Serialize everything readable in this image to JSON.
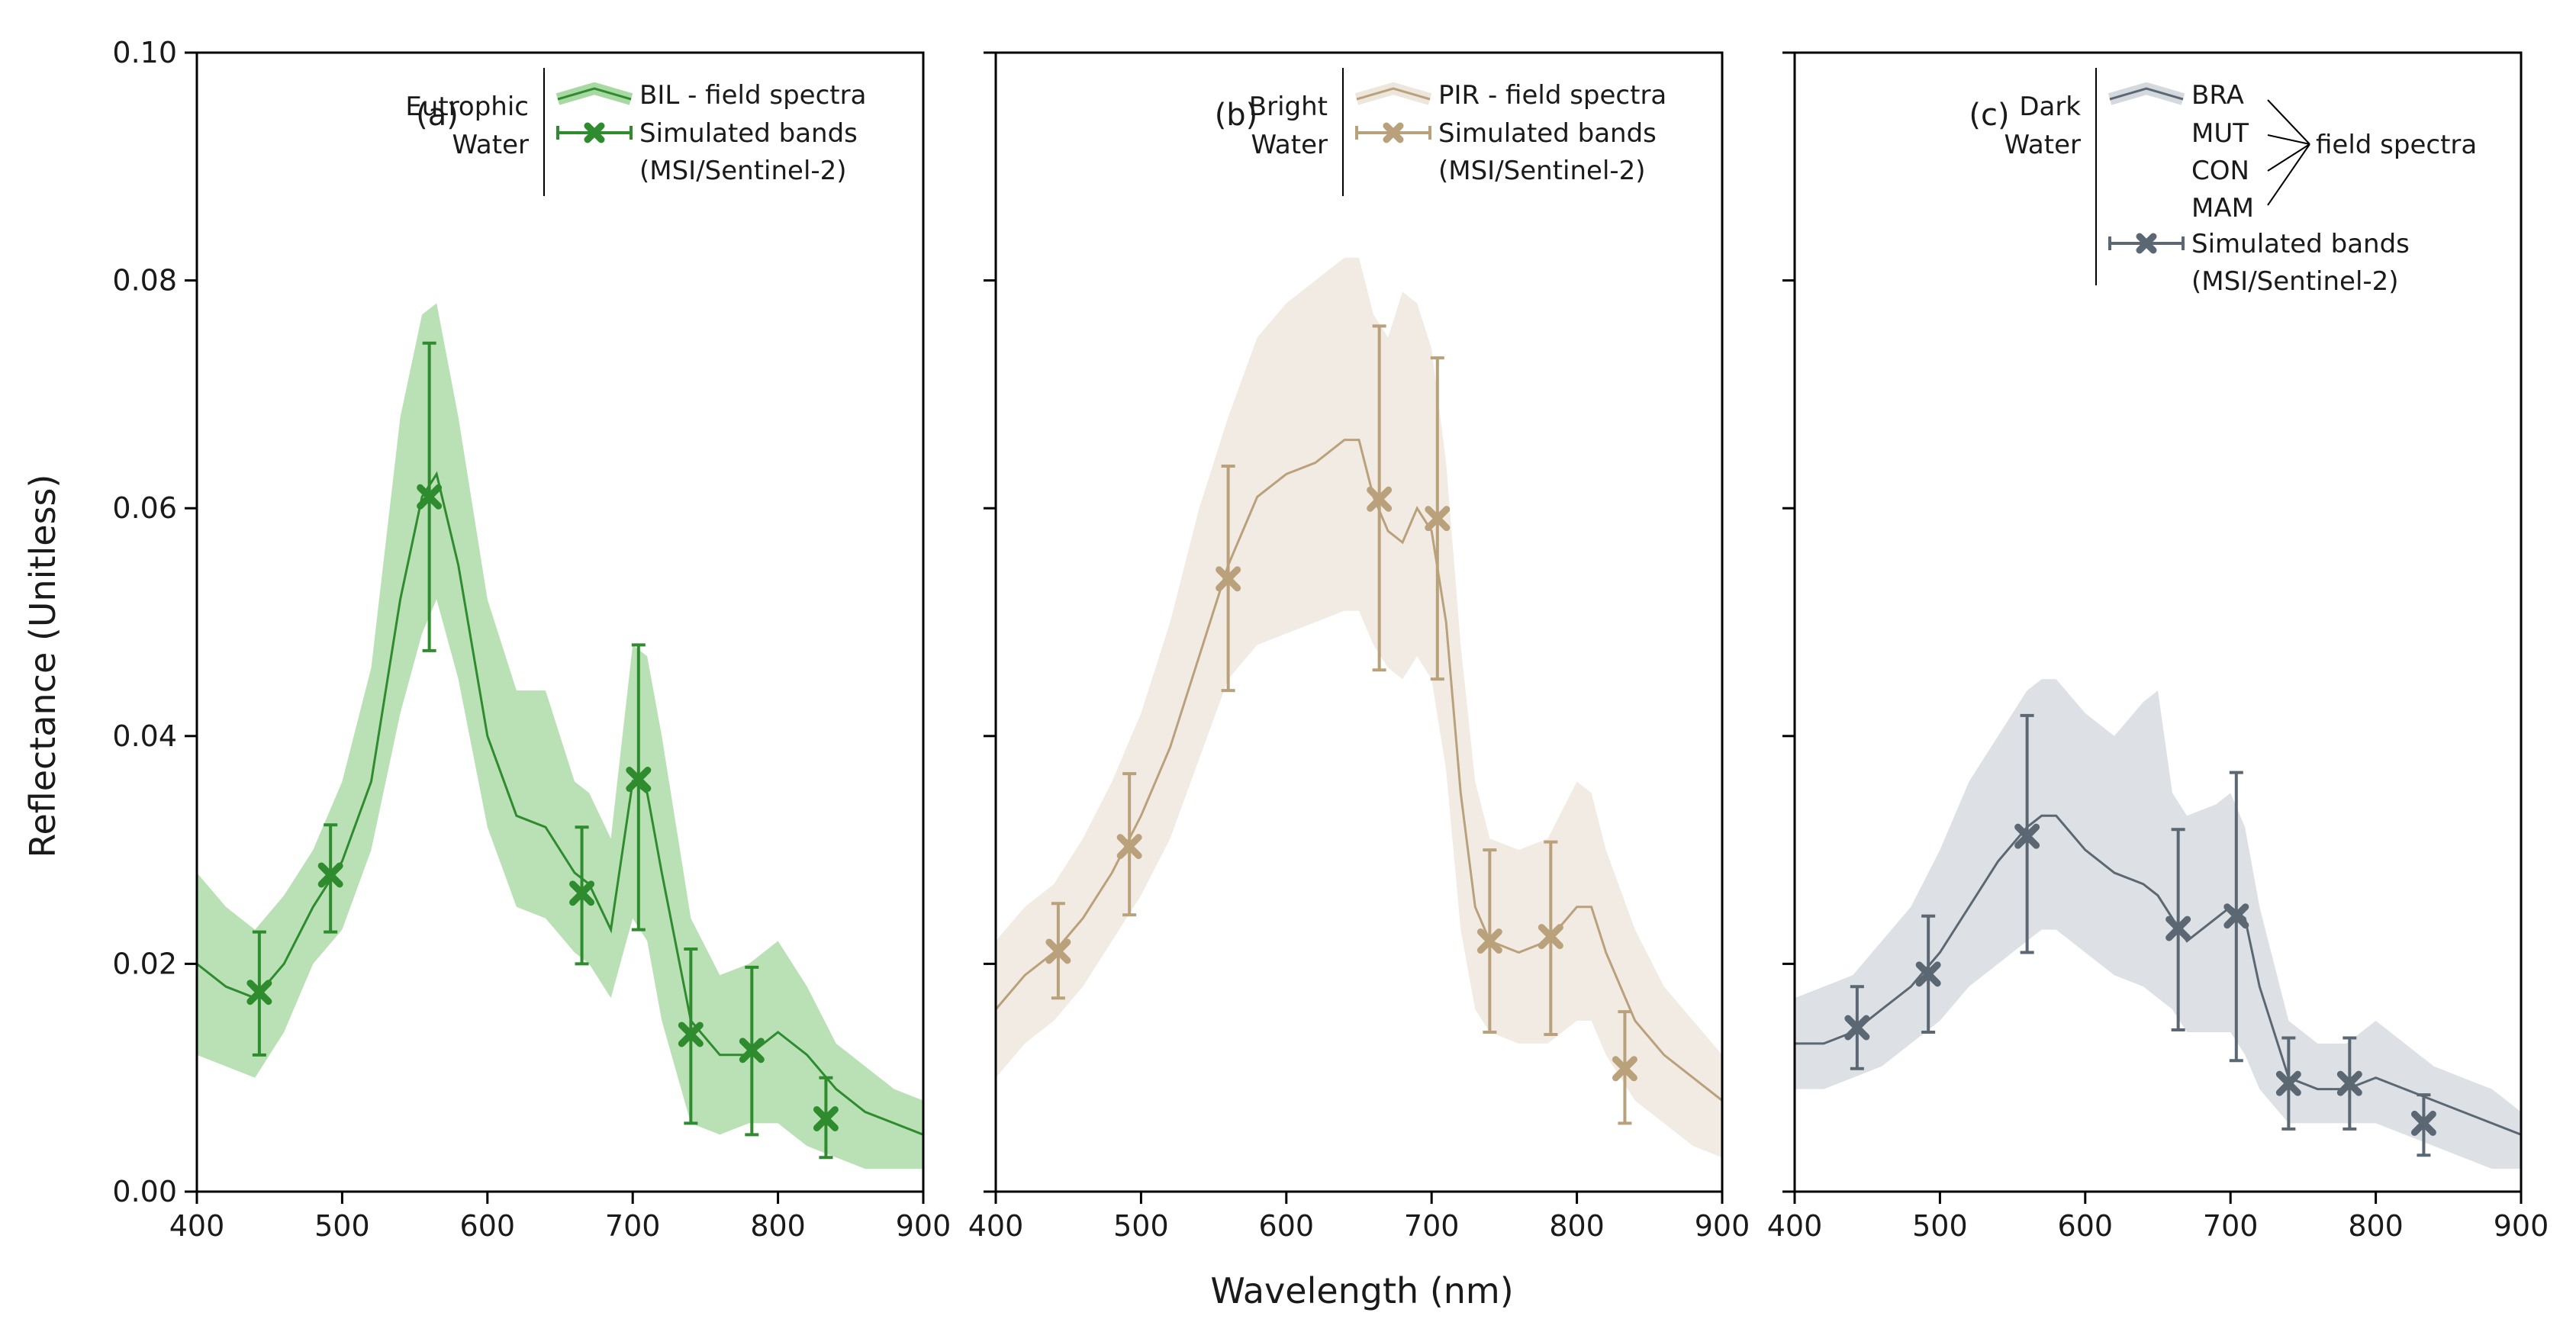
{
  "chart_data": {
    "type": "line",
    "ylabel": "Reflectance (Unitless)",
    "xlabel": "Wavelength (nm)",
    "xlim": [
      400,
      900
    ],
    "ylim": [
      0,
      0.1
    ],
    "x_ticks": [
      "400",
      "500",
      "600",
      "700",
      "800",
      "900"
    ],
    "y_ticks": [
      "0.00",
      "0.02",
      "0.04",
      "0.06",
      "0.08",
      "0.10"
    ],
    "grid": false,
    "band_wavelengths": [
      443,
      490,
      560,
      665,
      705,
      740,
      783,
      842
    ],
    "panels": [
      {
        "tag": "(a)",
        "water_line1": "Eutrophic",
        "water_line2": "Water",
        "legend": {
          "spectra_label": "BIL - field spectra",
          "bands_line1": "Simulated bands",
          "bands_line2": "(MSI/Sentinel-2)"
        },
        "color": "#2e8b2e",
        "fill_color": "#a9d9a3",
        "spectrum": {
          "x": [
            400,
            420,
            440,
            460,
            480,
            500,
            520,
            540,
            555,
            565,
            580,
            600,
            620,
            640,
            660,
            670,
            685,
            700,
            710,
            720,
            740,
            760,
            780,
            800,
            820,
            840,
            860,
            880,
            900
          ],
          "mean": [
            0.02,
            0.018,
            0.017,
            0.02,
            0.025,
            0.029,
            0.036,
            0.052,
            0.061,
            0.063,
            0.055,
            0.04,
            0.033,
            0.032,
            0.028,
            0.027,
            0.023,
            0.036,
            0.035,
            0.028,
            0.015,
            0.012,
            0.012,
            0.014,
            0.012,
            0.009,
            0.007,
            0.006,
            0.005
          ],
          "lower": [
            0.012,
            0.011,
            0.01,
            0.014,
            0.02,
            0.023,
            0.03,
            0.042,
            0.049,
            0.052,
            0.045,
            0.032,
            0.025,
            0.024,
            0.021,
            0.02,
            0.017,
            0.024,
            0.022,
            0.015,
            0.006,
            0.005,
            0.006,
            0.006,
            0.004,
            0.003,
            0.002,
            0.002,
            0.002
          ],
          "upper": [
            0.028,
            0.025,
            0.023,
            0.026,
            0.03,
            0.036,
            0.046,
            0.068,
            0.077,
            0.078,
            0.068,
            0.052,
            0.044,
            0.044,
            0.036,
            0.035,
            0.031,
            0.048,
            0.047,
            0.04,
            0.024,
            0.019,
            0.02,
            0.022,
            0.018,
            0.013,
            0.011,
            0.009,
            0.008
          ]
        },
        "bands": {
          "x": [
            443,
            492,
            560,
            665,
            704,
            740,
            782,
            833
          ],
          "y": [
            0.0175,
            0.0278,
            0.061,
            0.0262,
            0.0362,
            0.0138,
            0.0124,
            0.0064
          ],
          "ylow": [
            0.012,
            0.0228,
            0.0475,
            0.02,
            0.023,
            0.006,
            0.005,
            0.003
          ],
          "yhigh": [
            0.0228,
            0.0322,
            0.0745,
            0.032,
            0.048,
            0.0213,
            0.0197,
            0.01
          ]
        }
      },
      {
        "tag": "(b)",
        "water_line1": "Bright",
        "water_line2": "Water",
        "legend": {
          "spectra_label": "PIR - field spectra",
          "bands_line1": "Simulated bands",
          "bands_line2": "(MSI/Sentinel-2)"
        },
        "color": "#b9a17b",
        "fill_color": "#ede6dc",
        "spectrum": {
          "x": [
            400,
            420,
            440,
            460,
            480,
            500,
            520,
            540,
            560,
            580,
            600,
            620,
            640,
            650,
            660,
            670,
            680,
            690,
            700,
            710,
            720,
            730,
            740,
            760,
            780,
            800,
            810,
            820,
            840,
            860,
            880,
            900
          ],
          "mean": [
            0.016,
            0.019,
            0.021,
            0.024,
            0.028,
            0.033,
            0.039,
            0.047,
            0.055,
            0.061,
            0.063,
            0.064,
            0.066,
            0.066,
            0.061,
            0.058,
            0.057,
            0.06,
            0.058,
            0.05,
            0.035,
            0.025,
            0.022,
            0.021,
            0.022,
            0.025,
            0.025,
            0.021,
            0.015,
            0.012,
            0.01,
            0.008
          ],
          "lower": [
            0.01,
            0.013,
            0.015,
            0.018,
            0.022,
            0.026,
            0.031,
            0.038,
            0.045,
            0.048,
            0.049,
            0.05,
            0.051,
            0.051,
            0.048,
            0.046,
            0.045,
            0.047,
            0.045,
            0.037,
            0.023,
            0.016,
            0.014,
            0.013,
            0.013,
            0.015,
            0.015,
            0.012,
            0.008,
            0.006,
            0.004,
            0.003
          ],
          "upper": [
            0.022,
            0.025,
            0.027,
            0.031,
            0.036,
            0.042,
            0.05,
            0.06,
            0.068,
            0.075,
            0.078,
            0.08,
            0.082,
            0.082,
            0.077,
            0.075,
            0.079,
            0.078,
            0.074,
            0.064,
            0.048,
            0.036,
            0.031,
            0.03,
            0.031,
            0.036,
            0.035,
            0.03,
            0.023,
            0.018,
            0.015,
            0.012
          ]
        },
        "bands": {
          "x": [
            443,
            492,
            560,
            664,
            704,
            740,
            782,
            833
          ],
          "y": [
            0.0211,
            0.0303,
            0.0538,
            0.0608,
            0.0591,
            0.022,
            0.0224,
            0.0108
          ],
          "ylow": [
            0.017,
            0.0243,
            0.044,
            0.0458,
            0.045,
            0.014,
            0.0138,
            0.006
          ],
          "yhigh": [
            0.0253,
            0.0367,
            0.0637,
            0.076,
            0.0732,
            0.03,
            0.0307,
            0.0158
          ]
        }
      },
      {
        "tag": "(c)",
        "water_line1": "Dark",
        "water_line2": "Water",
        "legend": {
          "spectra_names": [
            "BRA",
            "MUT",
            "CON",
            "MAM"
          ],
          "spectra_group_label": "field spectra",
          "bands_line1": "Simulated bands",
          "bands_line2": "(MSI/Sentinel-2)"
        },
        "color": "#5b6873",
        "fill_color": "#d4d9de",
        "spectrum": {
          "x": [
            400,
            420,
            440,
            460,
            480,
            500,
            520,
            540,
            560,
            570,
            580,
            600,
            620,
            640,
            650,
            660,
            670,
            690,
            700,
            710,
            720,
            740,
            760,
            780,
            800,
            820,
            840,
            860,
            880,
            900
          ],
          "mean": [
            0.013,
            0.013,
            0.014,
            0.016,
            0.018,
            0.021,
            0.025,
            0.029,
            0.032,
            0.033,
            0.033,
            0.03,
            0.028,
            0.027,
            0.026,
            0.024,
            0.022,
            0.024,
            0.025,
            0.024,
            0.018,
            0.01,
            0.009,
            0.009,
            0.01,
            0.009,
            0.008,
            0.007,
            0.006,
            0.005
          ],
          "lower": [
            0.009,
            0.009,
            0.01,
            0.011,
            0.013,
            0.015,
            0.018,
            0.02,
            0.022,
            0.023,
            0.023,
            0.021,
            0.019,
            0.018,
            0.017,
            0.016,
            0.014,
            0.014,
            0.014,
            0.012,
            0.009,
            0.006,
            0.006,
            0.006,
            0.006,
            0.005,
            0.004,
            0.003,
            0.002,
            0.002
          ],
          "upper": [
            0.017,
            0.018,
            0.019,
            0.022,
            0.025,
            0.03,
            0.036,
            0.04,
            0.044,
            0.045,
            0.045,
            0.042,
            0.04,
            0.043,
            0.044,
            0.035,
            0.033,
            0.034,
            0.035,
            0.032,
            0.025,
            0.015,
            0.013,
            0.013,
            0.015,
            0.013,
            0.011,
            0.01,
            0.009,
            0.007
          ]
        },
        "bands": {
          "x": [
            443,
            492,
            560,
            664,
            704,
            740,
            782,
            833
          ],
          "y": [
            0.0144,
            0.0191,
            0.0312,
            0.0231,
            0.0242,
            0.0095,
            0.0095,
            0.006
          ],
          "ylow": [
            0.0108,
            0.014,
            0.021,
            0.0142,
            0.0115,
            0.0055,
            0.0055,
            0.0032
          ],
          "yhigh": [
            0.018,
            0.0242,
            0.0418,
            0.0318,
            0.0368,
            0.0135,
            0.0135,
            0.0085
          ]
        }
      }
    ]
  }
}
